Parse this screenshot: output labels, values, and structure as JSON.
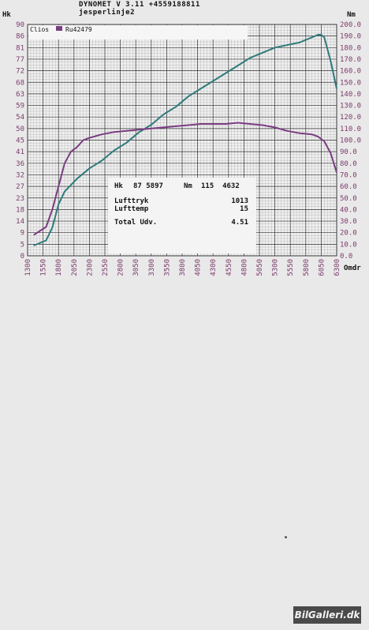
{
  "header": {
    "line1": "DYNOMET  V 3.11  +4559188811",
    "line2": "jesperlinje2"
  },
  "legend": {
    "item1": "Clios",
    "item2": "Ru42479"
  },
  "info": {
    "hk_label": "Hk",
    "hk_value": "87 5897",
    "nm_label": "Nm",
    "nm_value": "115  4632",
    "lufttryk_label": "Lufttryk",
    "lufttryk_value": "1013",
    "lufttemp_label": "Lufttemp",
    "lufttemp_value": "15",
    "total_label": "Total Udv.",
    "total_value": "4.51"
  },
  "watermark": "BilGalleri.dk",
  "colors": {
    "power": "#2f7a7c",
    "torque": "#7a3d82",
    "grid": "#222222",
    "axis_text": "#7b3a6a"
  },
  "chart_data": {
    "type": "line",
    "xlabel": "Omdr",
    "ylabel_left": "Hk",
    "ylabel_right": "Nm",
    "xlim": [
      1300,
      6300
    ],
    "ylim_left": [
      0,
      90
    ],
    "ylim_right": [
      0,
      200
    ],
    "x_ticks": [
      "1300",
      "1550",
      "1800",
      "2050",
      "2300",
      "2550",
      "2800",
      "3050",
      "3300",
      "3550",
      "3800",
      "4050",
      "4300",
      "4550",
      "4800",
      "5050",
      "5300",
      "5550",
      "5800",
      "6050",
      "6300"
    ],
    "y_ticks_left": [
      "0",
      "5",
      "9",
      "14",
      "18",
      "23",
      "27",
      "32",
      "36",
      "41",
      "45",
      "50",
      "54",
      "59",
      "63",
      "68",
      "72",
      "77",
      "81",
      "86",
      "90"
    ],
    "y_ticks_right": [
      "0.0",
      "10.0",
      "20.0",
      "30.0",
      "40.0",
      "50.0",
      "60.0",
      "70.0",
      "80.0",
      "90.0",
      "100.0",
      "110.0",
      "120.0",
      "130.0",
      "140.0",
      "150.0",
      "160.0",
      "170.0",
      "180.0",
      "190.0",
      "200.0"
    ],
    "grid": true,
    "series": [
      {
        "name": "Clios",
        "axis": "left",
        "x": [
          1400,
          1600,
          1700,
          1800,
          1900,
          2100,
          2300,
          2500,
          2700,
          2900,
          3100,
          3300,
          3500,
          3700,
          3900,
          4100,
          4300,
          4500,
          4700,
          4900,
          5100,
          5300,
          5500,
          5700,
          5800,
          5900,
          6000,
          6050,
          6100,
          6200,
          6300
        ],
        "y": [
          4,
          6,
          11,
          20,
          25,
          30,
          34,
          37,
          41,
          44,
          48,
          51,
          55,
          58,
          62,
          65,
          68,
          71,
          74,
          77,
          79,
          81,
          82,
          83,
          84,
          85,
          86,
          86,
          85,
          76,
          65
        ]
      },
      {
        "name": "Ru42479",
        "axis": "right",
        "x": [
          1400,
          1600,
          1700,
          1800,
          1900,
          2000,
          2100,
          2200,
          2300,
          2500,
          2700,
          2900,
          3100,
          3300,
          3500,
          3700,
          3900,
          4100,
          4300,
          4500,
          4700,
          4900,
          5100,
          5300,
          5500,
          5700,
          5900,
          6000,
          6100,
          6200,
          6300
        ],
        "y": [
          18,
          25,
          40,
          60,
          80,
          90,
          94,
          100,
          102,
          105,
          107,
          108,
          109,
          110,
          111,
          112,
          113,
          114,
          114,
          114,
          115,
          114,
          113,
          111,
          108,
          106,
          105,
          103,
          99,
          89,
          72
        ]
      }
    ]
  }
}
